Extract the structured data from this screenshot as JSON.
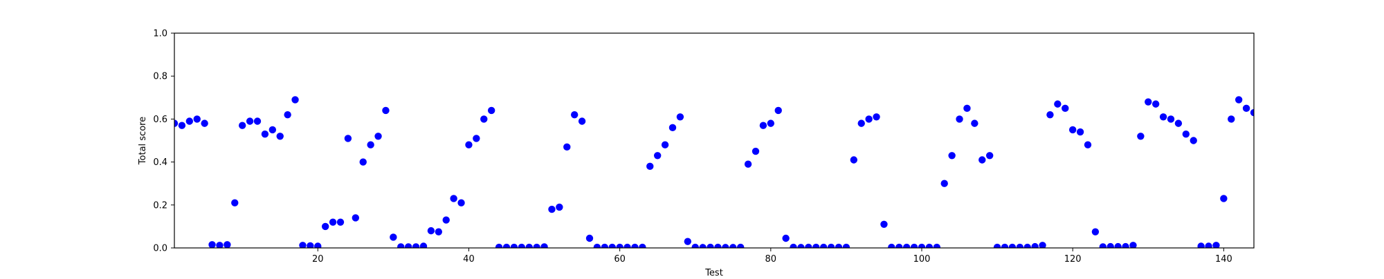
{
  "chart_data": {
    "type": "scatter",
    "title": "",
    "xlabel": "Test",
    "ylabel": "Total score",
    "xlim": [
      1,
      144
    ],
    "ylim": [
      0.0,
      1.0
    ],
    "x_ticks": [
      20,
      40,
      60,
      80,
      100,
      120,
      140
    ],
    "y_ticks": [
      0.0,
      0.2,
      0.4,
      0.6,
      0.8,
      1.0
    ],
    "x_tick_labels": [
      "20",
      "40",
      "60",
      "80",
      "100",
      "120",
      "140"
    ],
    "y_tick_labels": [
      "0.0",
      "0.2",
      "0.4",
      "0.6",
      "0.8",
      "1.0"
    ],
    "grid": false,
    "marker_color": "#0000ff",
    "series": [
      {
        "points": [
          [
            1,
            0.58
          ],
          [
            2,
            0.57
          ],
          [
            3,
            0.59
          ],
          [
            4,
            0.6
          ],
          [
            5,
            0.58
          ],
          [
            6,
            0.015
          ],
          [
            7,
            0.012
          ],
          [
            8,
            0.015
          ],
          [
            9,
            0.21
          ],
          [
            10,
            0.57
          ],
          [
            11,
            0.59
          ],
          [
            12,
            0.59
          ],
          [
            13,
            0.53
          ],
          [
            14,
            0.55
          ],
          [
            15,
            0.52
          ],
          [
            16,
            0.62
          ],
          [
            17,
            0.69
          ],
          [
            18,
            0.012
          ],
          [
            19,
            0.01
          ],
          [
            20,
            0.008
          ],
          [
            21,
            0.1
          ],
          [
            22,
            0.12
          ],
          [
            23,
            0.12
          ],
          [
            24,
            0.51
          ],
          [
            25,
            0.14
          ],
          [
            26,
            0.4
          ],
          [
            27,
            0.48
          ],
          [
            28,
            0.52
          ],
          [
            29,
            0.64
          ],
          [
            30,
            0.05
          ],
          [
            31,
            0.005
          ],
          [
            32,
            0.005
          ],
          [
            33,
            0.005
          ],
          [
            34,
            0.008
          ],
          [
            35,
            0.08
          ],
          [
            36,
            0.075
          ],
          [
            37,
            0.13
          ],
          [
            38,
            0.23
          ],
          [
            39,
            0.21
          ],
          [
            40,
            0.48
          ],
          [
            41,
            0.51
          ],
          [
            42,
            0.6
          ],
          [
            43,
            0.64
          ],
          [
            44,
            0.003
          ],
          [
            45,
            0.003
          ],
          [
            46,
            0.003
          ],
          [
            47,
            0.003
          ],
          [
            48,
            0.003
          ],
          [
            49,
            0.003
          ],
          [
            50,
            0.005
          ],
          [
            51,
            0.18
          ],
          [
            52,
            0.19
          ],
          [
            53,
            0.47
          ],
          [
            54,
            0.62
          ],
          [
            55,
            0.59
          ],
          [
            56,
            0.045
          ],
          [
            57,
            0.003
          ],
          [
            58,
            0.003
          ],
          [
            59,
            0.003
          ],
          [
            60,
            0.003
          ],
          [
            61,
            0.003
          ],
          [
            62,
            0.003
          ],
          [
            63,
            0.003
          ],
          [
            64,
            0.38
          ],
          [
            65,
            0.43
          ],
          [
            66,
            0.48
          ],
          [
            67,
            0.56
          ],
          [
            68,
            0.61
          ],
          [
            69,
            0.03
          ],
          [
            70,
            0.003
          ],
          [
            71,
            0.002
          ],
          [
            72,
            0.003
          ],
          [
            73,
            0.003
          ],
          [
            74,
            0.002
          ],
          [
            75,
            0.002
          ],
          [
            76,
            0.003
          ],
          [
            77,
            0.39
          ],
          [
            78,
            0.45
          ],
          [
            79,
            0.57
          ],
          [
            80,
            0.58
          ],
          [
            81,
            0.64
          ],
          [
            82,
            0.045
          ],
          [
            83,
            0.003
          ],
          [
            84,
            0.002
          ],
          [
            85,
            0.003
          ],
          [
            86,
            0.003
          ],
          [
            87,
            0.003
          ],
          [
            88,
            0.003
          ],
          [
            89,
            0.003
          ],
          [
            90,
            0.003
          ],
          [
            91,
            0.41
          ],
          [
            92,
            0.58
          ],
          [
            93,
            0.6
          ],
          [
            94,
            0.61
          ],
          [
            95,
            0.11
          ],
          [
            96,
            0.003
          ],
          [
            97,
            0.003
          ],
          [
            98,
            0.003
          ],
          [
            99,
            0.003
          ],
          [
            100,
            0.003
          ],
          [
            101,
            0.003
          ],
          [
            102,
            0.003
          ],
          [
            103,
            0.3
          ],
          [
            104,
            0.43
          ],
          [
            105,
            0.6
          ],
          [
            106,
            0.65
          ],
          [
            107,
            0.58
          ],
          [
            108,
            0.41
          ],
          [
            109,
            0.43
          ],
          [
            110,
            0.003
          ],
          [
            111,
            0.003
          ],
          [
            112,
            0.003
          ],
          [
            113,
            0.003
          ],
          [
            114,
            0.003
          ],
          [
            115,
            0.006
          ],
          [
            116,
            0.012
          ],
          [
            117,
            0.62
          ],
          [
            118,
            0.67
          ],
          [
            119,
            0.65
          ],
          [
            120,
            0.55
          ],
          [
            121,
            0.54
          ],
          [
            122,
            0.48
          ],
          [
            123,
            0.075
          ],
          [
            124,
            0.005
          ],
          [
            125,
            0.006
          ],
          [
            126,
            0.006
          ],
          [
            127,
            0.006
          ],
          [
            128,
            0.012
          ],
          [
            129,
            0.52
          ],
          [
            130,
            0.68
          ],
          [
            131,
            0.67
          ],
          [
            132,
            0.61
          ],
          [
            133,
            0.6
          ],
          [
            134,
            0.58
          ],
          [
            135,
            0.53
          ],
          [
            136,
            0.5
          ],
          [
            137,
            0.008
          ],
          [
            138,
            0.008
          ],
          [
            139,
            0.012
          ],
          [
            140,
            0.23
          ],
          [
            141,
            0.6
          ],
          [
            142,
            0.69
          ],
          [
            143,
            0.65
          ],
          [
            144,
            0.63
          ]
        ]
      }
    ]
  }
}
